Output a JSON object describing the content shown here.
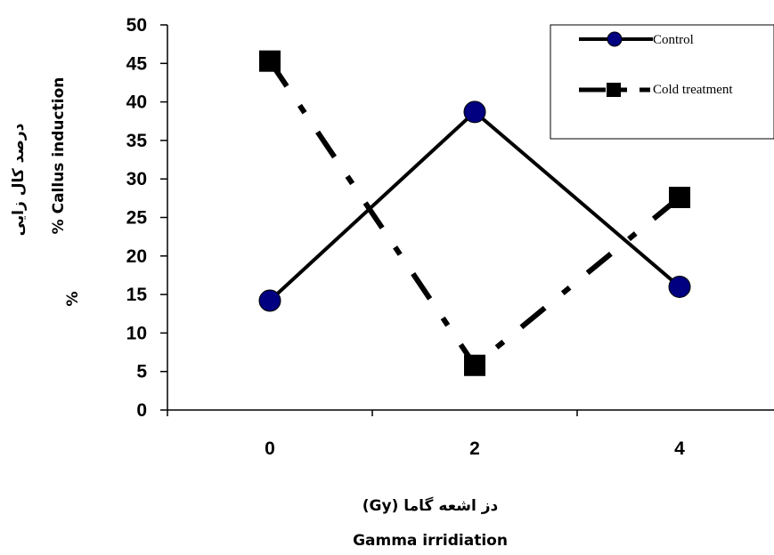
{
  "chart_data": {
    "type": "line",
    "title": "",
    "categories": [
      "0",
      "2",
      "4"
    ],
    "xlabel_fa": "دز اشعه گاما (Gy)",
    "xlabel_en": "Gamma irridiation",
    "ylabel_fa": "درصد کال زایی",
    "ylabel_en": "% Callus induction",
    "ylabel_pct": "%",
    "ylim": [
      0,
      50
    ],
    "yticks": [
      "0",
      "5",
      "10",
      "15",
      "20",
      "25",
      "30",
      "35",
      "40",
      "45",
      "50"
    ],
    "grid": false,
    "legend_position": "top-right",
    "series": [
      {
        "name": "Control",
        "values": [
          14.2,
          38.7,
          16.0
        ],
        "color": "#000080",
        "marker": "circle",
        "line": "solid"
      },
      {
        "name": "Cold treatment",
        "values": [
          45.3,
          5.8,
          27.6
        ],
        "color": "#000000",
        "marker": "square",
        "line": "dash-dot"
      }
    ]
  }
}
